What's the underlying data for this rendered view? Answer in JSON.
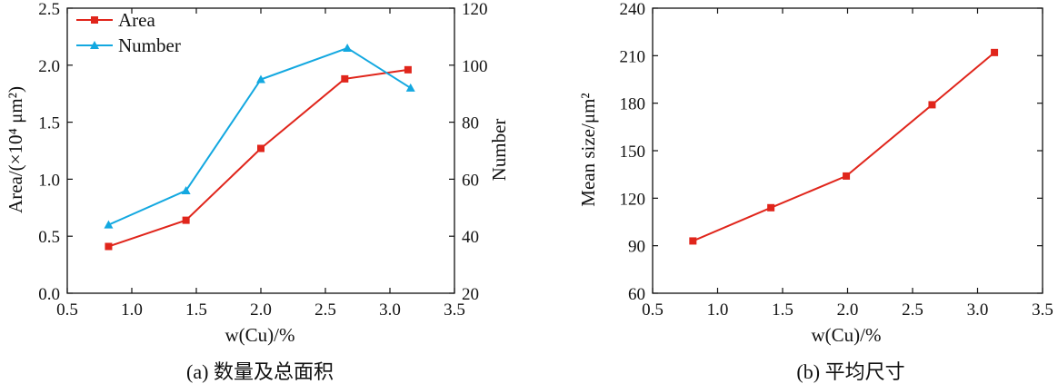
{
  "colors": {
    "area": "#e0251b",
    "number": "#13a8e0",
    "axis": "#111111"
  },
  "chart_data": [
    {
      "id": "a",
      "type": "line",
      "caption": "(a) 数量及总面积",
      "xlabel": "w(Cu)/%",
      "ylabel": "Area/(×10⁴ μm²)",
      "y2label": "Number",
      "xlim": [
        0.5,
        3.5
      ],
      "ylim": [
        0.0,
        2.5
      ],
      "y2lim": [
        20,
        120
      ],
      "x_ticks": [
        "0.5",
        "1.0",
        "1.5",
        "2.0",
        "2.5",
        "3.0",
        "3.5"
      ],
      "y_ticks": [
        "0.0",
        "0.5",
        "1.0",
        "1.5",
        "2.0",
        "2.5"
      ],
      "y2_ticks": [
        "20",
        "40",
        "60",
        "80",
        "100",
        "120"
      ],
      "grid": false,
      "legend_position": "top-left",
      "series": [
        {
          "name": "Area",
          "axis": "left",
          "marker": "square",
          "x": [
            0.82,
            1.42,
            2.0,
            2.65,
            3.14
          ],
          "y": [
            0.41,
            0.64,
            1.27,
            1.88,
            1.96
          ]
        },
        {
          "name": "Number",
          "axis": "right",
          "marker": "triangle",
          "x": [
            0.82,
            1.42,
            2.0,
            2.67,
            3.16
          ],
          "y": [
            44,
            56,
            95,
            106,
            92
          ]
        }
      ]
    },
    {
      "id": "b",
      "type": "line",
      "caption": "(b) 平均尺寸",
      "xlabel": "w(Cu)/%",
      "ylabel": "Mean size/μm²",
      "xlim": [
        0.5,
        3.5
      ],
      "ylim": [
        60,
        240
      ],
      "x_ticks": [
        "0.5",
        "1.0",
        "1.5",
        "2.0",
        "2.5",
        "3.0",
        "3.5"
      ],
      "y_ticks": [
        "60",
        "90",
        "120",
        "150",
        "180",
        "210",
        "240"
      ],
      "grid": false,
      "series": [
        {
          "name": "",
          "axis": "left",
          "marker": "square",
          "x": [
            0.81,
            1.41,
            1.99,
            2.65,
            3.13
          ],
          "y": [
            93,
            114,
            134,
            179,
            212
          ]
        }
      ]
    }
  ]
}
